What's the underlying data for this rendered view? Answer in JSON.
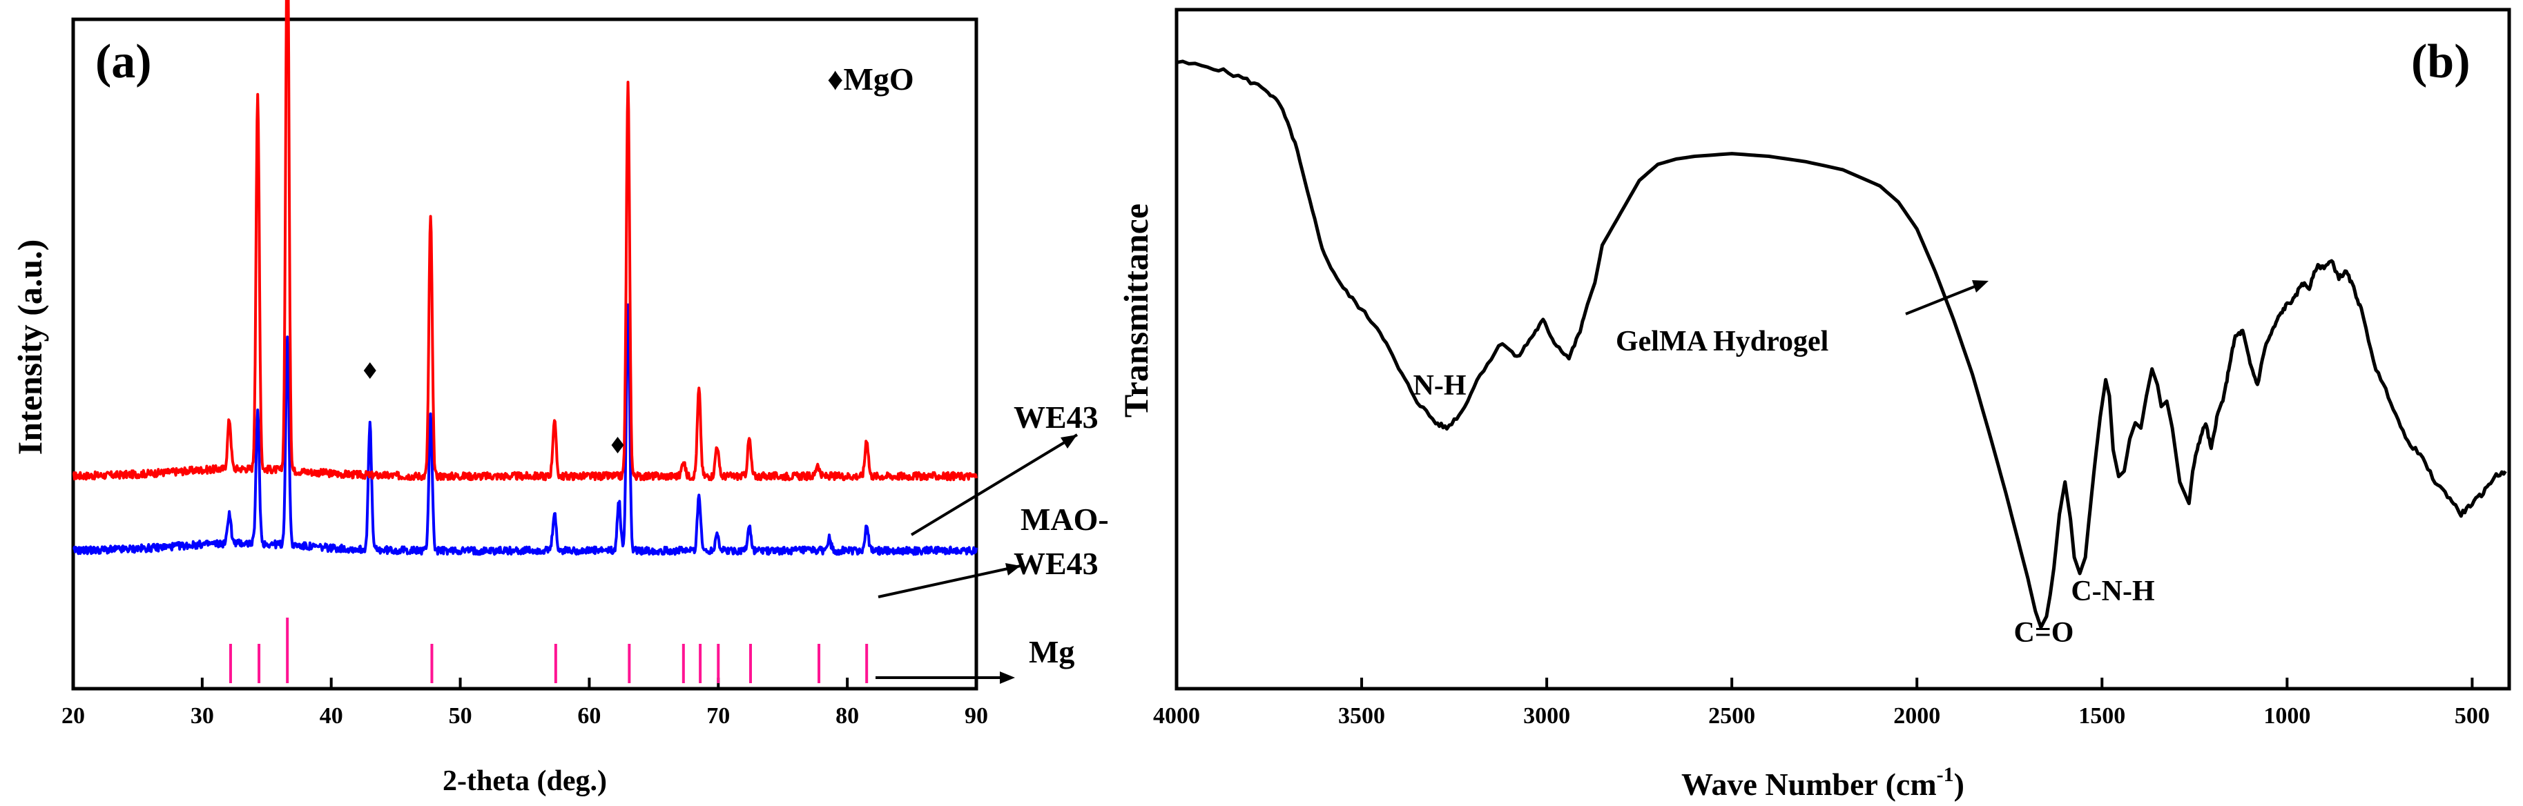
{
  "chart_data": [
    {
      "type": "line",
      "panel_label": "(a)",
      "xlabel": "2-theta (deg.)",
      "ylabel": "Intensity (a.u.)",
      "xlim": [
        20,
        90
      ],
      "xticks": [
        "20",
        "30",
        "40",
        "50",
        "60",
        "70",
        "80",
        "90"
      ],
      "legend_note": "♦MgO",
      "series": [
        {
          "name": "WE43",
          "color": "#ff0000",
          "baseline": 0.3,
          "peaks": [
            [
              32.1,
              0.08
            ],
            [
              34.3,
              0.6
            ],
            [
              36.6,
              0.9
            ],
            [
              47.7,
              0.42
            ],
            [
              57.3,
              0.09
            ],
            [
              63.0,
              0.63
            ],
            [
              67.3,
              0.025
            ],
            [
              68.5,
              0.14
            ],
            [
              69.9,
              0.05
            ],
            [
              72.4,
              0.06
            ],
            [
              77.7,
              0.02
            ],
            [
              81.5,
              0.06
            ]
          ]
        },
        {
          "name": "MAO-WE43",
          "color": "#0000ff",
          "baseline": 0.18,
          "peaks": [
            [
              32.1,
              0.05
            ],
            [
              34.3,
              0.21
            ],
            [
              36.6,
              0.33
            ],
            [
              43.0,
              0.2
            ],
            [
              47.7,
              0.22
            ],
            [
              57.3,
              0.06
            ],
            [
              62.3,
              0.08
            ],
            [
              63.0,
              0.4
            ],
            [
              68.5,
              0.09
            ],
            [
              69.9,
              0.03
            ],
            [
              72.4,
              0.04
            ],
            [
              78.6,
              0.02
            ],
            [
              81.5,
              0.04
            ]
          ]
        }
      ],
      "mgo_markers": [
        43.0,
        62.2
      ],
      "reference_name": "Mg",
      "reference_color": "#ff1493",
      "reference_lines": [
        [
          32.2,
          0.6
        ],
        [
          34.4,
          0.6
        ],
        [
          36.6,
          1.0
        ],
        [
          47.8,
          0.6
        ],
        [
          57.4,
          0.6
        ],
        [
          63.1,
          0.6
        ],
        [
          67.3,
          0.6
        ],
        [
          68.6,
          0.6
        ],
        [
          70.0,
          0.6
        ],
        [
          72.5,
          0.6
        ],
        [
          77.8,
          0.6
        ],
        [
          81.5,
          0.6
        ]
      ],
      "annotations": [
        "WE43",
        "MAO-",
        "WE43",
        "Mg"
      ]
    },
    {
      "type": "line",
      "panel_label": "(b)",
      "xlabel": "Wave Number (cm",
      "xlabel_sup": "-1",
      "xlabel_end": ")",
      "ylabel": "Transmittance",
      "xlim": [
        4000,
        400
      ],
      "xticks": [
        "4000",
        "3500",
        "3000",
        "2500",
        "2000",
        "1500",
        "1000",
        "500"
      ],
      "series_name": "GelMA Hydrogel",
      "x": [
        4000,
        3900,
        3820,
        3760,
        3720,
        3680,
        3640,
        3600,
        3550,
        3500,
        3450,
        3400,
        3350,
        3300,
        3270,
        3230,
        3180,
        3120,
        3080,
        3040,
        3010,
        2980,
        2940,
        2910,
        2890,
        2870,
        2850,
        2800,
        2750,
        2700,
        2650,
        2600,
        2500,
        2400,
        2300,
        2200,
        2100,
        2050,
        2000,
        1950,
        1900,
        1850,
        1800,
        1760,
        1730,
        1700,
        1680,
        1665,
        1650,
        1640,
        1630,
        1615,
        1600,
        1585,
        1575,
        1560,
        1545,
        1535,
        1520,
        1505,
        1490,
        1480,
        1470,
        1455,
        1440,
        1425,
        1410,
        1395,
        1380,
        1365,
        1350,
        1340,
        1325,
        1310,
        1290,
        1265,
        1255,
        1240,
        1220,
        1205,
        1190,
        1170,
        1155,
        1140,
        1120,
        1100,
        1080,
        1060,
        1040,
        1020,
        1000,
        980,
        960,
        940,
        920,
        900,
        880,
        860,
        840,
        820,
        800,
        760,
        720,
        680,
        640,
        600,
        560,
        530,
        500,
        470,
        440,
        410
      ],
      "y": [
        100,
        99,
        97,
        95,
        92,
        85,
        74,
        64,
        58,
        54,
        50,
        43,
        37,
        33,
        32,
        35,
        42,
        48,
        45,
        49,
        52,
        48,
        45,
        50,
        55,
        59,
        66,
        72,
        78,
        81,
        82,
        82.5,
        83,
        82.5,
        81.5,
        80,
        77,
        74,
        69,
        61,
        52,
        42,
        30,
        20,
        12,
        4,
        -2,
        -5,
        -3,
        1,
        6,
        16,
        22,
        15,
        8,
        5,
        8,
        15,
        25,
        34,
        41,
        38,
        28,
        23,
        24,
        30,
        33,
        32,
        38,
        43,
        40,
        36,
        37,
        32,
        22,
        18,
        24,
        29,
        33,
        28,
        34,
        38,
        44,
        49,
        50,
        44,
        40,
        47,
        50,
        53,
        55,
        56,
        59,
        58,
        62,
        62,
        63,
        60,
        61,
        58,
        54,
        43,
        37,
        30,
        27,
        22,
        19,
        16,
        18,
        20,
        23,
        24
      ],
      "annotations": [
        "N-H",
        "GelMA Hydrogel",
        "C=O",
        "C-N-H"
      ]
    }
  ]
}
